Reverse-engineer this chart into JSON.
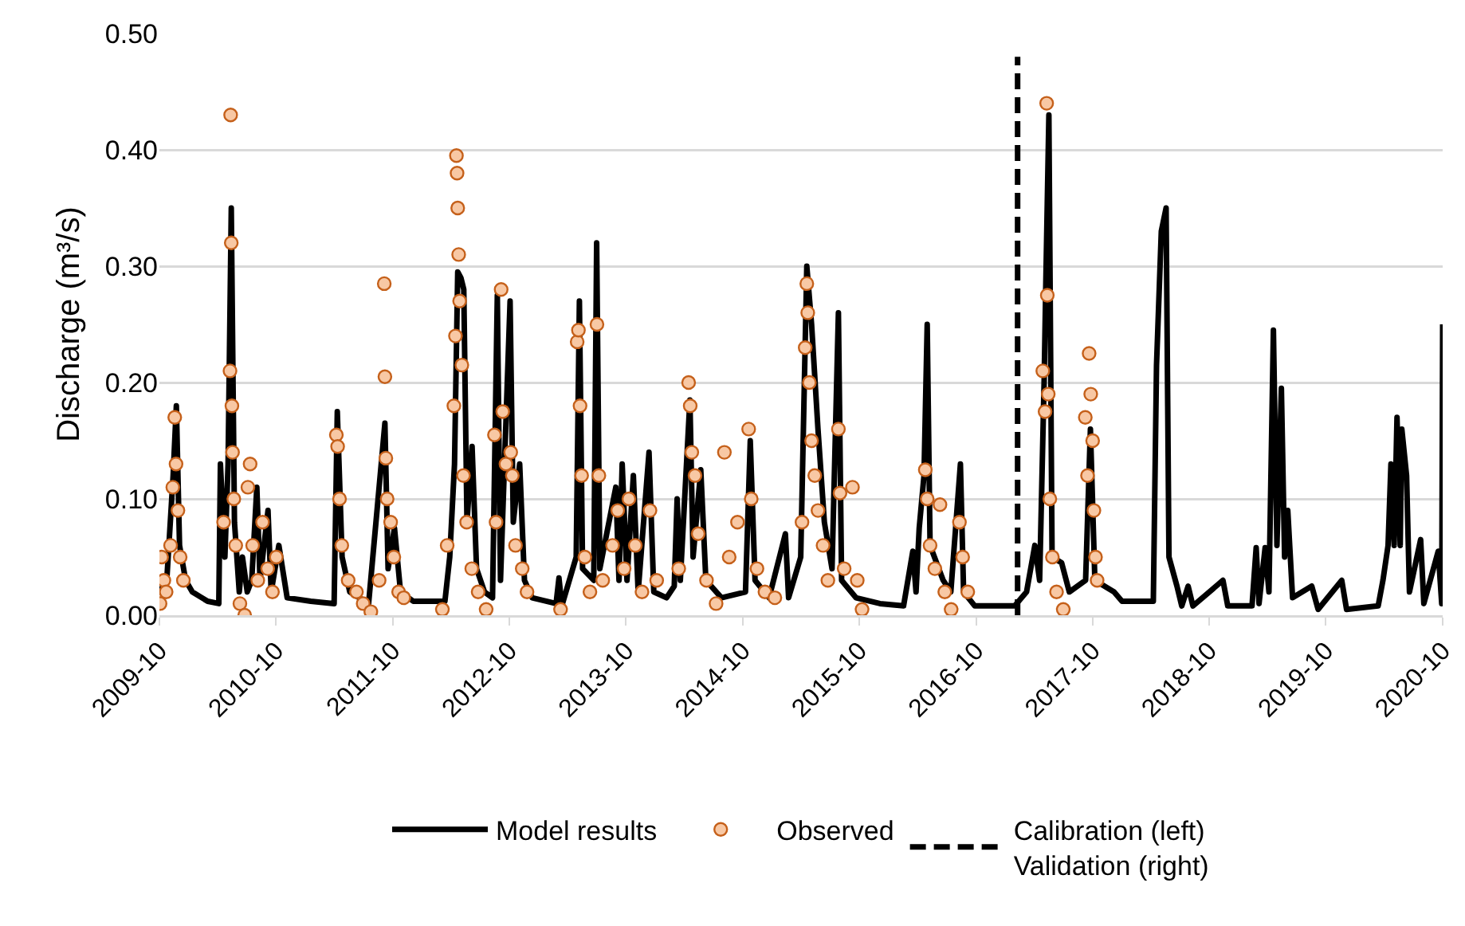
{
  "chart_data": {
    "type": "line",
    "ylabel": "Discharge (m³/s)",
    "xlim": [
      "2009-10",
      "2020-10"
    ],
    "xticks": [
      "2009-10",
      "2010-10",
      "2011-10",
      "2012-10",
      "2013-10",
      "2014-10",
      "2015-10",
      "2016-10",
      "2017-10",
      "2018-10",
      "2019-10",
      "2020-10"
    ],
    "ylim": [
      0,
      0.5
    ],
    "yticks": [
      {
        "value": 0,
        "label": "0.00"
      },
      {
        "value": 0.1,
        "label": "0.10"
      },
      {
        "value": 0.2,
        "label": "0.20"
      },
      {
        "value": 0.3,
        "label": "0.30"
      },
      {
        "value": 0.4,
        "label": "0.40"
      },
      {
        "value": 0.5,
        "label": "0.50"
      }
    ],
    "grid": "y",
    "legend": "bottom",
    "series": [
      {
        "name": "Model results",
        "color": "#000000",
        "marker": "none",
        "line_style": "solid",
        "x": [
          "2009-10-01",
          "2009-10-24",
          "2009-11-13",
          "2009-11-23",
          "2009-12-03",
          "2009-12-22",
          "2010-01-12",
          "2010-03-01",
          "2010-04-05",
          "2010-04-10",
          "2010-04-24",
          "2010-05-04",
          "2010-05-14",
          "2010-05-24",
          "2010-06-08",
          "2010-06-18",
          "2010-07-03",
          "2010-07-17",
          "2010-08-02",
          "2010-08-12",
          "2010-09-06",
          "2010-09-16",
          "2010-10-10",
          "2010-11-05",
          "2011-01-18",
          "2011-04-01",
          "2011-04-11",
          "2011-04-26",
          "2011-05-20",
          "2011-07-18",
          "2011-09-07",
          "2011-09-17",
          "2011-10-07",
          "2011-10-26",
          "2011-12-05",
          "2012-03-13",
          "2012-03-28",
          "2012-04-12",
          "2012-04-22",
          "2012-05-02",
          "2012-05-11",
          "2012-05-21",
          "2012-06-06",
          "2012-06-20",
          "2012-07-15",
          "2012-08-09",
          "2012-08-24",
          "2012-09-03",
          "2012-10-03",
          "2012-10-13",
          "2012-11-02",
          "2012-11-17",
          "2012-12-11",
          "2013-02-24",
          "2013-03-05",
          "2013-03-14",
          "2013-04-28",
          "2013-05-08",
          "2013-05-18",
          "2013-06-22",
          "2013-07-01",
          "2013-07-11",
          "2013-08-30",
          "2013-09-09",
          "2013-09-19",
          "2013-10-04",
          "2013-10-24",
          "2013-11-08",
          "2013-12-12",
          "2013-12-27",
          "2014-02-05",
          "2014-03-01",
          "2014-03-10",
          "2014-03-20",
          "2014-04-19",
          "2014-04-29",
          "2014-05-23",
          "2014-06-08",
          "2014-07-27",
          "2014-10-10",
          "2014-10-25",
          "2014-11-09",
          "2014-12-23",
          "2015-02-12",
          "2015-02-22",
          "2015-04-01",
          "2015-04-20",
          "2015-05-05",
          "2015-05-25",
          "2015-06-14",
          "2015-07-08",
          "2015-07-28",
          "2015-08-07",
          "2015-09-21",
          "2015-12-05",
          "2016-02-17",
          "2016-03-17",
          "2016-03-27",
          "2016-04-06",
          "2016-04-21",
          "2016-05-01",
          "2016-05-10",
          "2016-06-20",
          "2016-07-14",
          "2016-08-13",
          "2016-08-23",
          "2016-09-27",
          "2017-01-30",
          "2017-03-08",
          "2017-04-03",
          "2017-04-18",
          "2017-05-02",
          "2017-05-07",
          "2017-05-17",
          "2017-05-27",
          "2017-06-26",
          "2017-07-20",
          "2017-09-09",
          "2017-09-24",
          "2017-10-08",
          "2017-12-07",
          "2018-01-01",
          "2018-04-09",
          "2018-04-19",
          "2018-05-04",
          "2018-05-19",
          "2018-05-28",
          "2018-06-22",
          "2018-07-07",
          "2018-07-27",
          "2018-08-11",
          "2018-11-13",
          "2018-11-28",
          "2019-02-12",
          "2019-02-25",
          "2019-03-06",
          "2019-03-25",
          "2019-04-06",
          "2019-04-20",
          "2019-05-01",
          "2019-05-15",
          "2019-05-25",
          "2019-06-04",
          "2019-06-19",
          "2019-08-18",
          "2019-09-07",
          "2019-11-20",
          "2019-12-05",
          "2020-03-13",
          "2020-03-28",
          "2020-04-13",
          "2020-04-22",
          "2020-05-02",
          "2020-05-11",
          "2020-05-21",
          "2020-05-26",
          "2020-06-10",
          "2020-06-19",
          "2020-07-24",
          "2020-08-03",
          "2020-09-17",
          "2020-09-28",
          "2020-10-01"
        ],
        "values": [
          0.02,
          0.03,
          0.12,
          0.18,
          0.06,
          0.03,
          0.02,
          0.012,
          0.01,
          0.13,
          0.05,
          0.13,
          0.35,
          0.08,
          0.02,
          0.05,
          0.02,
          0.03,
          0.11,
          0.03,
          0.09,
          0.02,
          0.06,
          0.015,
          0.012,
          0.01,
          0.175,
          0.05,
          0.02,
          0.01,
          0.165,
          0.04,
          0.075,
          0.02,
          0.012,
          0.012,
          0.05,
          0.13,
          0.295,
          0.29,
          0.28,
          0.08,
          0.145,
          0.04,
          0.02,
          0.015,
          0.275,
          0.03,
          0.27,
          0.08,
          0.13,
          0.03,
          0.015,
          0.01,
          0.032,
          0.008,
          0.05,
          0.27,
          0.04,
          0.03,
          0.32,
          0.04,
          0.11,
          0.03,
          0.13,
          0.03,
          0.12,
          0.02,
          0.14,
          0.02,
          0.015,
          0.025,
          0.1,
          0.03,
          0.185,
          0.05,
          0.125,
          0.03,
          0.015,
          0.02,
          0.15,
          0.03,
          0.015,
          0.07,
          0.015,
          0.05,
          0.3,
          0.25,
          0.16,
          0.08,
          0.04,
          0.26,
          0.03,
          0.015,
          0.01,
          0.008,
          0.055,
          0.02,
          0.075,
          0.12,
          0.25,
          0.06,
          0.03,
          0.02,
          0.13,
          0.02,
          0.008,
          0.008,
          0.02,
          0.06,
          0.03,
          0.2,
          0.28,
          0.43,
          0.05,
          0.045,
          0.02,
          0.03,
          0.16,
          0.03,
          0.02,
          0.012,
          0.012,
          0.215,
          0.33,
          0.35,
          0.05,
          0.025,
          0.008,
          0.025,
          0.008,
          0.03,
          0.008,
          0.008,
          0.058,
          0.01,
          0.058,
          0.02,
          0.245,
          0.06,
          0.195,
          0.05,
          0.09,
          0.015,
          0.025,
          0.005,
          0.03,
          0.005,
          0.008,
          0.03,
          0.06,
          0.13,
          0.06,
          0.17,
          0.06,
          0.16,
          0.12,
          0.02,
          0.065,
          0.01,
          0.055,
          0.01,
          0.25
        ]
      },
      {
        "name": "Observed",
        "type": "scatter",
        "color": "#f8c8a4",
        "marker": "circle",
        "x": [
          "2009-10-03",
          "2009-10-08",
          "2009-10-15",
          "2009-10-22",
          "2009-11-05",
          "2009-11-12",
          "2009-11-18",
          "2009-11-22",
          "2009-11-28",
          "2009-12-05",
          "2009-12-15",
          "2010-04-20",
          "2010-05-10",
          "2010-05-12",
          "2010-05-14",
          "2010-05-16",
          "2010-05-18",
          "2010-05-22",
          "2010-05-28",
          "2010-06-10",
          "2010-06-25",
          "2010-07-05",
          "2010-07-12",
          "2010-07-20",
          "2010-08-05",
          "2010-08-20",
          "2010-09-05",
          "2010-09-20",
          "2010-10-02",
          "2011-04-08",
          "2011-04-12",
          "2011-04-18",
          "2011-04-25",
          "2011-05-15",
          "2011-06-10",
          "2011-07-01",
          "2011-07-25",
          "2011-08-20",
          "2011-09-05",
          "2011-09-07",
          "2011-09-10",
          "2011-09-14",
          "2011-09-25",
          "2011-10-05",
          "2011-10-20",
          "2011-11-05",
          "2012-03-05",
          "2012-03-20",
          "2012-04-10",
          "2012-04-15",
          "2012-04-18",
          "2012-04-20",
          "2012-04-22",
          "2012-04-25",
          "2012-04-28",
          "2012-05-05",
          "2012-05-10",
          "2012-05-20",
          "2012-06-05",
          "2012-06-25",
          "2012-07-20",
          "2012-08-15",
          "2012-08-20",
          "2012-09-05",
          "2012-09-10",
          "2012-09-20",
          "2012-10-05",
          "2012-10-10",
          "2012-10-20",
          "2012-11-10",
          "2012-11-25",
          "2013-03-10",
          "2013-05-01",
          "2013-05-05",
          "2013-05-10",
          "2013-05-15",
          "2013-05-25",
          "2013-06-10",
          "2013-07-02",
          "2013-07-08",
          "2013-07-20",
          "2013-08-20",
          "2013-09-05",
          "2013-09-25",
          "2013-10-10",
          "2013-10-30",
          "2013-11-20",
          "2013-12-15",
          "2014-01-05",
          "2014-03-15",
          "2014-04-15",
          "2014-04-20",
          "2014-04-25",
          "2014-05-05",
          "2014-05-15",
          "2014-06-10",
          "2014-07-10",
          "2014-08-05",
          "2014-08-20",
          "2014-09-15",
          "2014-10-20",
          "2014-10-28",
          "2014-11-15",
          "2014-12-10",
          "2015-01-10",
          "2015-04-05",
          "2015-04-15",
          "2015-04-20",
          "2015-04-23",
          "2015-04-28",
          "2015-05-05",
          "2015-05-15",
          "2015-05-25",
          "2015-06-10",
          "2015-06-25",
          "2015-07-28",
          "2015-08-02",
          "2015-08-15",
          "2015-09-10",
          "2015-09-25",
          "2015-10-10",
          "2016-04-25",
          "2016-05-01",
          "2016-05-10",
          "2016-05-25",
          "2016-06-10",
          "2016-06-25",
          "2016-07-15",
          "2016-08-10",
          "2016-08-20",
          "2016-09-05",
          "2017-04-28",
          "2017-05-05",
          "2017-05-10",
          "2017-05-12",
          "2017-05-15",
          "2017-05-20",
          "2017-05-28",
          "2017-06-10",
          "2017-07-01",
          "2017-09-08",
          "2017-09-15",
          "2017-09-20",
          "2017-09-25",
          "2017-10-01",
          "2017-10-05",
          "2017-10-10",
          "2017-10-15"
        ],
        "values": [
          0.01,
          0.05,
          0.03,
          0.02,
          0.06,
          0.11,
          0.17,
          0.13,
          0.09,
          0.05,
          0.03,
          0.08,
          0.21,
          0.43,
          0.32,
          0.18,
          0.14,
          0.1,
          0.06,
          0.01,
          0.0,
          0.11,
          0.13,
          0.06,
          0.03,
          0.08,
          0.04,
          0.02,
          0.05,
          0.155,
          0.145,
          0.1,
          0.06,
          0.03,
          0.02,
          0.01,
          0.003,
          0.03,
          0.285,
          0.205,
          0.135,
          0.1,
          0.08,
          0.05,
          0.02,
          0.015,
          0.005,
          0.06,
          0.18,
          0.24,
          0.395,
          0.38,
          0.35,
          0.31,
          0.27,
          0.215,
          0.12,
          0.08,
          0.04,
          0.02,
          0.005,
          0.155,
          0.08,
          0.28,
          0.175,
          0.13,
          0.14,
          0.12,
          0.06,
          0.04,
          0.02,
          0.005,
          0.235,
          0.245,
          0.18,
          0.12,
          0.05,
          0.02,
          0.25,
          0.12,
          0.03,
          0.06,
          0.09,
          0.04,
          0.1,
          0.06,
          0.02,
          0.09,
          0.03,
          0.04,
          0.2,
          0.18,
          0.14,
          0.12,
          0.07,
          0.03,
          0.01,
          0.14,
          0.05,
          0.08,
          0.16,
          0.1,
          0.04,
          0.02,
          0.015,
          0.08,
          0.23,
          0.285,
          0.26,
          0.2,
          0.15,
          0.12,
          0.09,
          0.06,
          0.03,
          0.16,
          0.105,
          0.04,
          0.11,
          0.03,
          0.005,
          0.125,
          0.1,
          0.06,
          0.04,
          0.095,
          0.02,
          0.005,
          0.08,
          0.05,
          0.02,
          0.21,
          0.175,
          0.44,
          0.275,
          0.19,
          0.1,
          0.05,
          0.02,
          0.005,
          0.17,
          0.12,
          0.225,
          0.19,
          0.15,
          0.09,
          0.05,
          0.03
        ]
      },
      {
        "name": "Calibration (left)\nValidation (right)",
        "type": "line",
        "color": "#000000",
        "marker": "none",
        "line_style": "dashed",
        "x": [
          "2017-02-08",
          "2017-02-08"
        ],
        "values": [
          0,
          0.48
        ]
      }
    ]
  }
}
